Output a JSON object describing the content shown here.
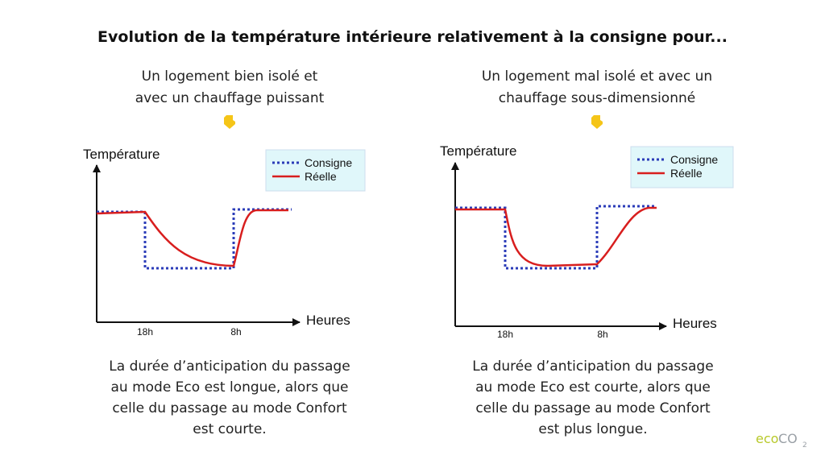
{
  "title": "Evolution de la température intérieure relativement à la consigne pour...",
  "panels": [
    {
      "heading": [
        "Un logement bien isolé et",
        "avec un chauffage puissant"
      ],
      "y_label": "Température",
      "x_label": "Heures",
      "x_ticks": [
        "18h",
        "8h"
      ],
      "legend": [
        "Consigne",
        "Réelle"
      ],
      "caption": [
        "La durée d’anticipation du passage",
        "au mode Eco est longue, alors que",
        "celle du passage au mode Confort",
        "est courte."
      ]
    },
    {
      "heading": [
        "Un logement mal isolé et avec un",
        "chauffage sous-dimensionné"
      ],
      "y_label": "Température",
      "x_label": "Heures",
      "x_ticks": [
        "18h",
        "8h"
      ],
      "legend": [
        "Consigne",
        "Réelle"
      ],
      "caption": [
        "La durée d’anticipation du passage",
        "au mode Eco est courte, alors que",
        "celle du passage au mode Confort",
        "est plus longue."
      ]
    }
  ],
  "logo": {
    "eco": "eco",
    "co": "CO",
    "sub": "2"
  }
}
